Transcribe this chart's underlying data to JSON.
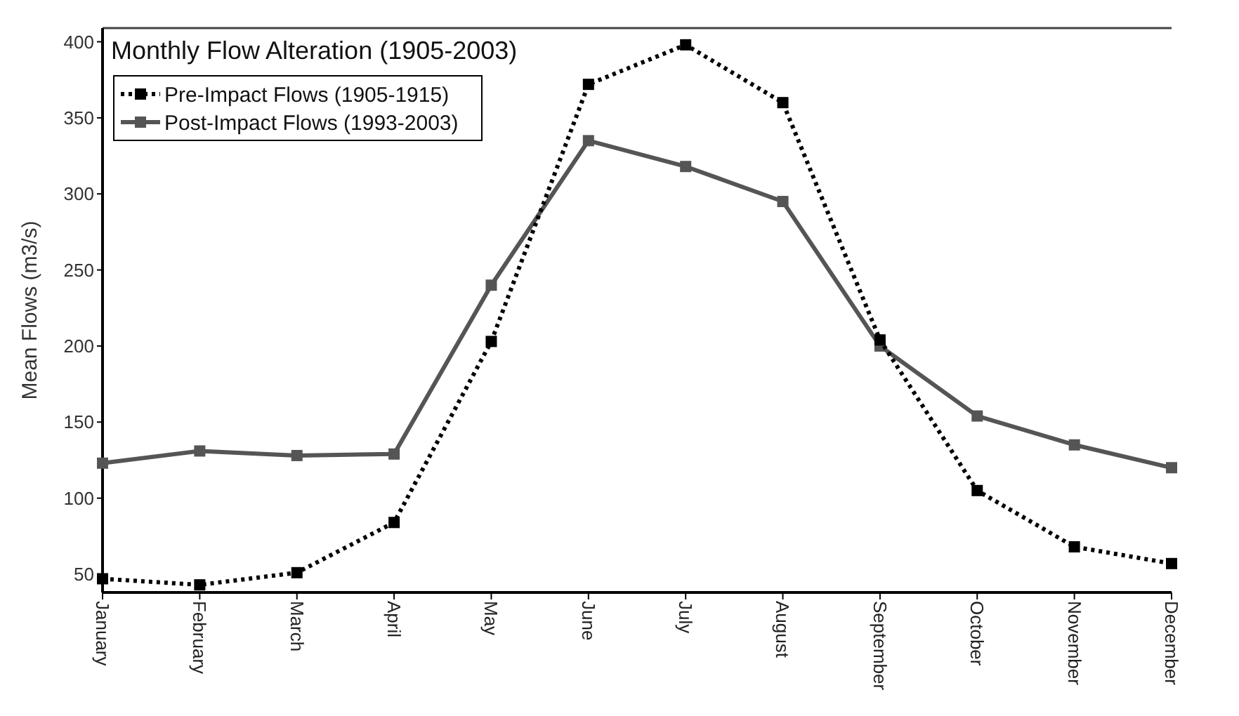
{
  "chart_data": {
    "type": "line",
    "title": "Monthly Flow Alteration (1905-2003)",
    "ylabel": "Mean Flows (m3/s)",
    "categories": [
      "January",
      "February",
      "March",
      "April",
      "May",
      "June",
      "July",
      "August",
      "September",
      "October",
      "November",
      "December"
    ],
    "series": [
      {
        "name": "Pre-Impact Flows (1905-1915)",
        "color": "#000000",
        "line_style": "dotted",
        "values": [
          47,
          43,
          51,
          84,
          203,
          372,
          398,
          360,
          204,
          105,
          68,
          57
        ]
      },
      {
        "name": "Post-Impact Flows (1993-2003)",
        "color": "#555555",
        "line_style": "solid",
        "values": [
          123,
          131,
          128,
          129,
          240,
          335,
          318,
          295,
          200,
          154,
          135,
          120
        ]
      }
    ],
    "ylim": [
      38,
      409
    ],
    "yticks": [
      50,
      100,
      150,
      200,
      250,
      300,
      350,
      400
    ],
    "grid": false,
    "legend": "top left",
    "marker": "square"
  }
}
